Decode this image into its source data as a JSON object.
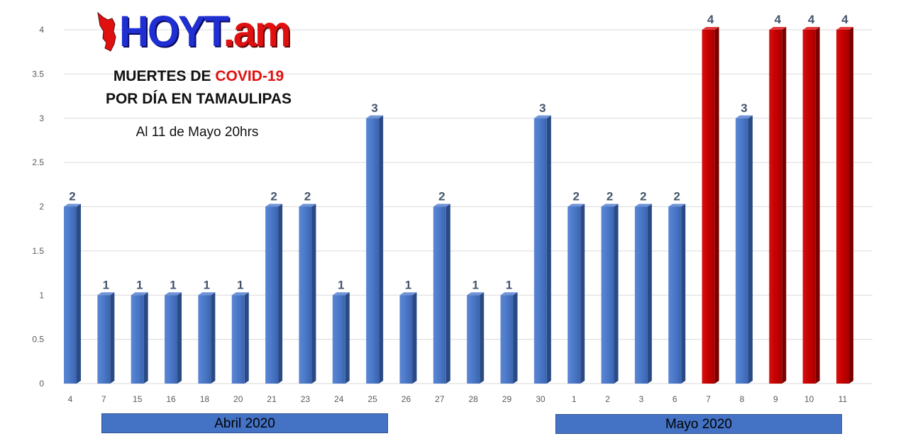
{
  "logo": {
    "text_main": "HOYT",
    "text_suffix": ".am"
  },
  "title": {
    "line1_prefix": "MUERTES DE ",
    "line1_highlight": "COVID-19",
    "line2": "POR DÍA EN TAMAULIPAS"
  },
  "subtitle": "Al 11 de Mayo  20hrs",
  "month_labels": {
    "april": "Abril 2020",
    "may": "Mayo 2020"
  },
  "colors": {
    "blue_bar": "#4472c4",
    "red_bar": "#c00000",
    "label": "#44546a",
    "grid": "#d9d9d9"
  },
  "chart_data": {
    "type": "bar",
    "title": "MUERTES DE COVID-19 POR DÍA EN TAMAULIPAS",
    "categories": [
      "4",
      "7",
      "15",
      "16",
      "18",
      "20",
      "21",
      "23",
      "24",
      "25",
      "26",
      "27",
      "28",
      "29",
      "30",
      "1",
      "2",
      "3",
      "6",
      "7",
      "8",
      "9",
      "10",
      "11"
    ],
    "values": [
      2,
      1,
      1,
      1,
      1,
      1,
      2,
      2,
      1,
      3,
      1,
      2,
      1,
      1,
      3,
      2,
      2,
      2,
      2,
      4,
      3,
      4,
      4,
      4
    ],
    "highlight": [
      false,
      false,
      false,
      false,
      false,
      false,
      false,
      false,
      false,
      false,
      false,
      false,
      false,
      false,
      false,
      false,
      false,
      false,
      false,
      true,
      false,
      true,
      true,
      true
    ],
    "yticks": [
      "0",
      "0.5",
      "1",
      "1.5",
      "2",
      "2.5",
      "3",
      "3.5",
      "4"
    ],
    "ylim": [
      0,
      4
    ],
    "grid": true,
    "xlabel": "",
    "ylabel": ""
  }
}
